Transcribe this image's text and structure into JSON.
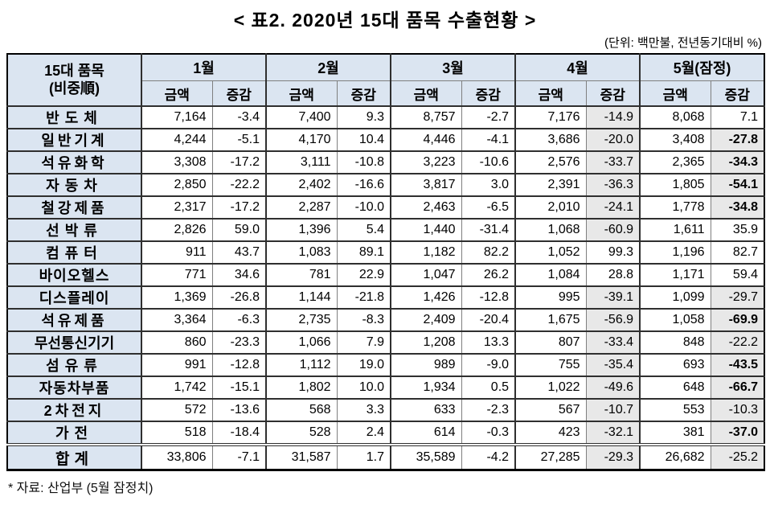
{
  "page": {
    "title": "< 표2. 2020년 15대 품목 수출현황 >",
    "unit_note": "(단위: 백만불, 전년동기대비 %)",
    "footnote": "* 자료: 산업부 (5월 잠정치)"
  },
  "colors": {
    "header-bg": "#dbe5f1",
    "label-bg": "#dbe5f1",
    "shaded-bg": "#e8e8e8",
    "grid-dark": "#2f2f2f",
    "grid-light": "#7f7f7f",
    "outer-border": "#000000",
    "text": "#000000"
  },
  "table": {
    "corner_header": [
      "15대 품목",
      "(비중順)"
    ],
    "month_headers": [
      "1월",
      "2월",
      "3월",
      "4월",
      "5월(잠정)"
    ],
    "sub_headers": [
      "금액",
      "증감"
    ],
    "rows": [
      {
        "item": "반도체",
        "values": [
          "7,164",
          "-3.4",
          "7,400",
          "9.3",
          "8,757",
          "-2.7",
          "7,176",
          "-14.9",
          "8,068",
          "7.1"
        ],
        "shaded": [
          7
        ],
        "bold": []
      },
      {
        "item": "일반기계",
        "values": [
          "4,244",
          "-5.1",
          "4,170",
          "10.4",
          "4,446",
          "-4.1",
          "3,686",
          "-20.0",
          "3,408",
          "-27.8"
        ],
        "shaded": [
          7,
          9
        ],
        "bold": [
          9
        ]
      },
      {
        "item": "석유화학",
        "values": [
          "3,308",
          "-17.2",
          "3,111",
          "-10.8",
          "3,223",
          "-10.6",
          "2,576",
          "-33.7",
          "2,365",
          "-34.3"
        ],
        "shaded": [
          7,
          9
        ],
        "bold": [
          9
        ]
      },
      {
        "item": "자동차",
        "values": [
          "2,850",
          "-22.2",
          "2,402",
          "-16.6",
          "3,817",
          "3.0",
          "2,391",
          "-36.3",
          "1,805",
          "-54.1"
        ],
        "shaded": [
          7,
          9
        ],
        "bold": [
          9
        ]
      },
      {
        "item": "철강제품",
        "values": [
          "2,317",
          "-17.2",
          "2,287",
          "-10.0",
          "2,463",
          "-6.5",
          "2,010",
          "-24.1",
          "1,778",
          "-34.8"
        ],
        "shaded": [
          7,
          9
        ],
        "bold": [
          9
        ]
      },
      {
        "item": "선박류",
        "values": [
          "2,826",
          "59.0",
          "1,396",
          "5.4",
          "1,440",
          "-31.4",
          "1,068",
          "-60.9",
          "1,611",
          "35.9"
        ],
        "shaded": [
          7
        ],
        "bold": []
      },
      {
        "item": "컴퓨터",
        "values": [
          "911",
          "43.7",
          "1,083",
          "89.1",
          "1,182",
          "82.2",
          "1,052",
          "99.3",
          "1,196",
          "82.7"
        ],
        "shaded": [],
        "bold": []
      },
      {
        "item": "바이오헬스",
        "values": [
          "771",
          "34.6",
          "781",
          "22.9",
          "1,047",
          "26.2",
          "1,084",
          "28.8",
          "1,171",
          "59.4"
        ],
        "shaded": [],
        "bold": []
      },
      {
        "item": "디스플레이",
        "values": [
          "1,369",
          "-26.8",
          "1,144",
          "-21.8",
          "1,426",
          "-12.8",
          "995",
          "-39.1",
          "1,099",
          "-29.7"
        ],
        "shaded": [
          7,
          9
        ],
        "bold": []
      },
      {
        "item": "석유제품",
        "values": [
          "3,364",
          "-6.3",
          "2,735",
          "-8.3",
          "2,409",
          "-20.4",
          "1,675",
          "-56.9",
          "1,058",
          "-69.9"
        ],
        "shaded": [
          7,
          9
        ],
        "bold": [
          9
        ]
      },
      {
        "item": "무선통신기기",
        "values": [
          "860",
          "-23.3",
          "1,066",
          "7.9",
          "1,208",
          "13.3",
          "807",
          "-33.4",
          "848",
          "-22.2"
        ],
        "shaded": [
          7,
          9
        ],
        "bold": []
      },
      {
        "item": "섬유류",
        "values": [
          "991",
          "-12.8",
          "1,112",
          "19.0",
          "989",
          "-9.0",
          "755",
          "-35.4",
          "693",
          "-43.5"
        ],
        "shaded": [
          7,
          9
        ],
        "bold": [
          9
        ]
      },
      {
        "item": "자동차부품",
        "values": [
          "1,742",
          "-15.1",
          "1,802",
          "10.0",
          "1,934",
          "0.5",
          "1,022",
          "-49.6",
          "648",
          "-66.7"
        ],
        "shaded": [
          7,
          9
        ],
        "bold": [
          9
        ]
      },
      {
        "item": "2차전지",
        "values": [
          "572",
          "-13.6",
          "568",
          "3.3",
          "633",
          "-2.3",
          "567",
          "-10.7",
          "553",
          "-10.3"
        ],
        "shaded": [
          7,
          9
        ],
        "bold": []
      },
      {
        "item": "가전",
        "values": [
          "518",
          "-18.4",
          "528",
          "2.4",
          "614",
          "-0.3",
          "423",
          "-32.1",
          "381",
          "-37.0"
        ],
        "shaded": [
          7,
          9
        ],
        "bold": [
          9
        ]
      }
    ],
    "total_row": {
      "item": "합계",
      "values": [
        "33,806",
        "-7.1",
        "31,587",
        "1.7",
        "35,589",
        "-4.2",
        "27,285",
        "-29.3",
        "26,682",
        "-25.2"
      ],
      "shaded": [
        7,
        9
      ],
      "bold": []
    }
  }
}
